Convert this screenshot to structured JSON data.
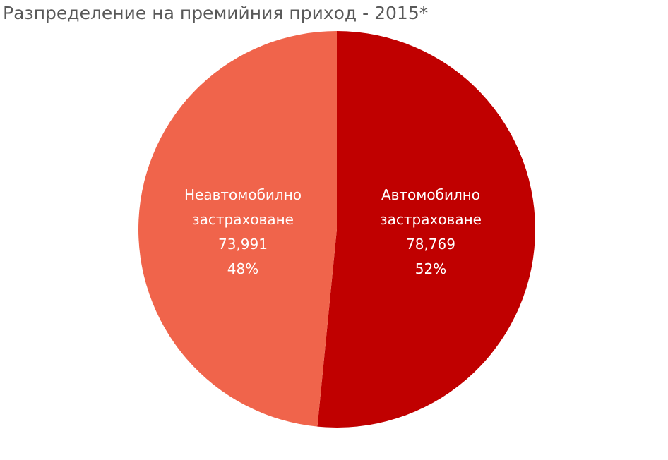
{
  "chart_data": {
    "type": "pie",
    "title": "Разпределение на премийния приход - 2015*",
    "slices": [
      {
        "label_line1": "Автомобилно",
        "label_line2": "застраховане",
        "value": 78769,
        "value_text": "78,769",
        "percent_text": "52%",
        "color": "#c00000"
      },
      {
        "label_line1": "Неавтомобилно",
        "label_line2": "застраховане",
        "value": 73991,
        "value_text": "73,991",
        "percent_text": "48%",
        "color": "#f0644b"
      }
    ],
    "legend": "none"
  }
}
